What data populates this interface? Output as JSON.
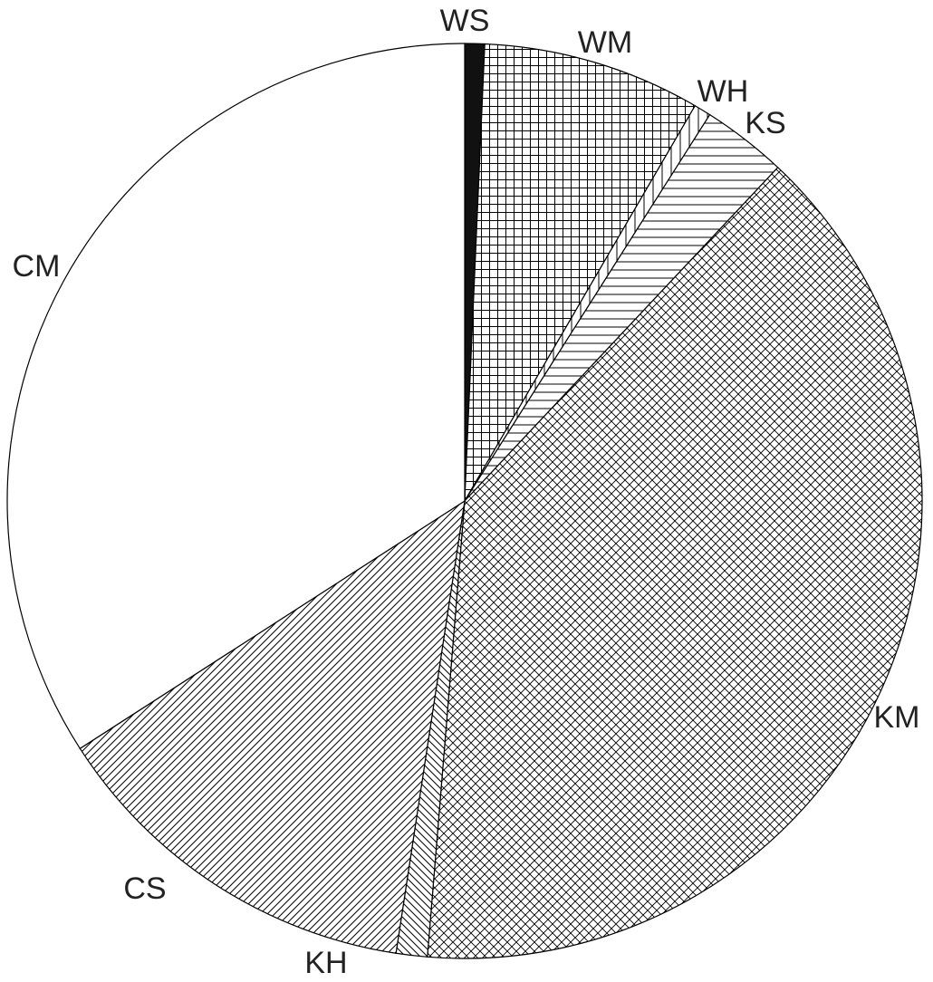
{
  "chart_data": {
    "type": "pie",
    "start_angle_deg": 0,
    "direction": "clockwise",
    "slices": [
      {
        "label": "WS",
        "value": 0.7,
        "pattern": "solid-black"
      },
      {
        "label": "WM",
        "value": 7.7,
        "pattern": "grid"
      },
      {
        "label": "WH",
        "value": 0.6,
        "pattern": "vertical-lines"
      },
      {
        "label": "KS",
        "value": 3.0,
        "pattern": "horizontal-lines"
      },
      {
        "label": "KM",
        "value": 39.3,
        "pattern": "cross-hatch"
      },
      {
        "label": "KH",
        "value": 1.1,
        "pattern": "back-diagonal"
      },
      {
        "label": "CS",
        "value": 13.5,
        "pattern": "forward-diagonal"
      },
      {
        "label": "CM",
        "value": 34.1,
        "pattern": "none"
      }
    ]
  }
}
